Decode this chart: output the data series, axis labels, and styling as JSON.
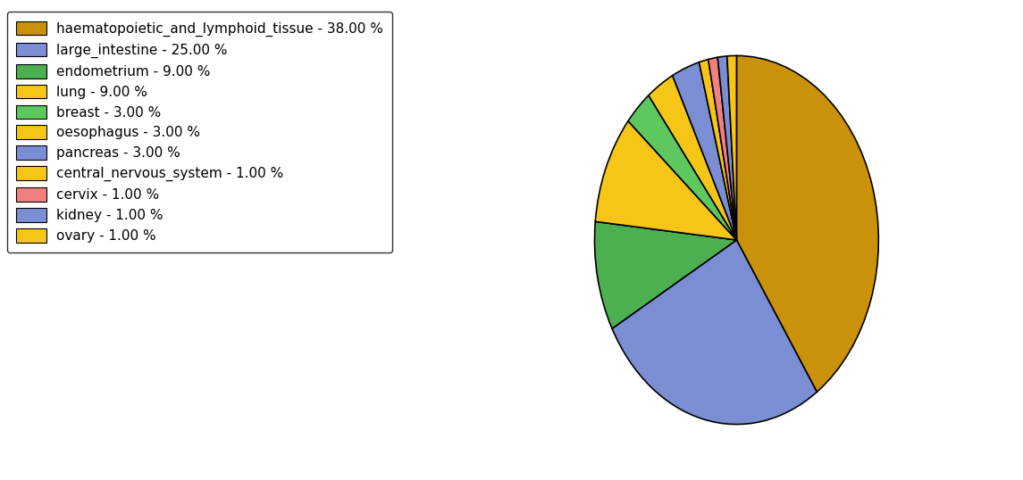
{
  "labels": [
    "haematopoietic_and_lymphoid_tissue",
    "large_intestine",
    "endometrium",
    "lung",
    "breast",
    "oesophagus",
    "pancreas",
    "central_nervous_system",
    "cervix",
    "kidney",
    "ovary"
  ],
  "values": [
    38,
    25,
    9,
    9,
    3,
    3,
    3,
    1,
    1,
    1,
    1
  ],
  "colors": [
    "#C9920A",
    "#7B8ED4",
    "#4CAF50",
    "#F5C518",
    "#5DC85D",
    "#F5C518",
    "#7B8ED4",
    "#F5C518",
    "#F28080",
    "#7B8ED4",
    "#F5C518"
  ],
  "legend_labels": [
    "haematopoietic_and_lymphoid_tissue - 38.00 %",
    "large_intestine - 25.00 %",
    "endometrium - 9.00 %",
    "lung - 9.00 %",
    "breast - 3.00 %",
    "oesophagus - 3.00 %",
    "pancreas - 3.00 %",
    "central_nervous_system - 1.00 %",
    "cervix - 1.00 %",
    "kidney - 1.00 %",
    "ovary - 1.00 %"
  ],
  "startangle": 90,
  "figsize": [
    11.45,
    5.38
  ],
  "dpi": 100
}
